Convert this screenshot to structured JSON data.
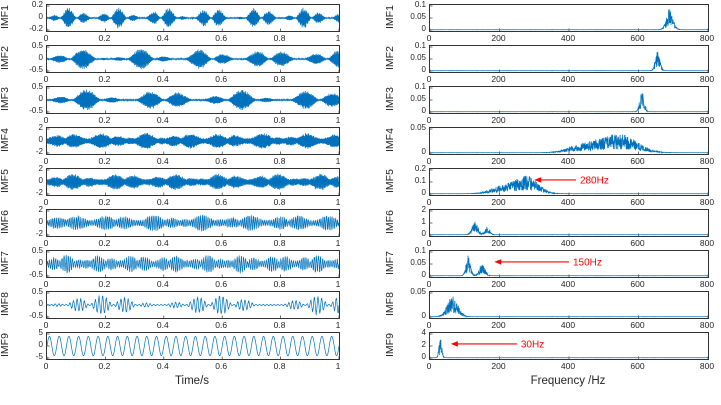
{
  "figure": {
    "background": "#ffffff",
    "line_color": "#0072BD",
    "axis_color": "#333333",
    "annotation_color": "#FF0000"
  },
  "chart_data": {
    "type": "line",
    "description": "EMD decomposition: nine IMF time-domain waveforms (left column) and their frequency spectra (right column)",
    "left_column": {
      "xlabel": "Time/s",
      "xlim": [
        0,
        1
      ],
      "xticks": [
        0,
        0.2,
        0.4,
        0.6,
        0.8,
        1
      ],
      "panels": [
        {
          "label": "IMF1",
          "ylim": [
            -0.2,
            0.2
          ],
          "yticks": [
            0.2,
            0,
            -0.2
          ],
          "signal": {
            "carrier_hz": 680,
            "amp": 0.19,
            "env_type": "bursts",
            "env_hz": [
              3.1,
              8.7
            ]
          }
        },
        {
          "label": "IMF2",
          "ylim": [
            -0.5,
            0.5
          ],
          "yticks": [
            0.5,
            0,
            -0.5
          ],
          "signal": {
            "carrier_hz": 650,
            "amp": 0.48,
            "env_type": "bursts",
            "env_hz": [
              2.3,
              5.1
            ]
          }
        },
        {
          "label": "IMF3",
          "ylim": [
            -0.5,
            0.5
          ],
          "yticks": [
            0.5,
            0,
            -0.5
          ],
          "signal": {
            "carrier_hz": 600,
            "amp": 0.48,
            "env_type": "bursts",
            "env_hz": [
              1.9,
              4.7
            ]
          }
        },
        {
          "label": "IMF4",
          "ylim": [
            -2,
            2
          ],
          "yticks": [
            2,
            0,
            -2
          ],
          "signal": {
            "carrier_hz": 520,
            "amp": 1.5,
            "env_type": "noisy",
            "env_hz": [
              3.7,
              6.3
            ]
          }
        },
        {
          "label": "IMF5",
          "ylim": [
            -2,
            2
          ],
          "yticks": [
            2,
            0,
            -2
          ],
          "signal": {
            "carrier_hz": 300,
            "amp": 1.5,
            "env_type": "noisy",
            "env_hz": [
              2.9,
              7.1
            ]
          }
        },
        {
          "label": "IMF6",
          "ylim": [
            -2,
            2
          ],
          "yticks": [
            2,
            0,
            -2
          ],
          "signal": {
            "carrier_hz": 160,
            "amp": 1.5,
            "env_type": "noisy",
            "env_hz": [
              3.3,
              5.9
            ]
          }
        },
        {
          "label": "IMF7",
          "ylim": [
            -0.5,
            0.5
          ],
          "yticks": [
            0.5,
            0,
            -0.5
          ],
          "signal": {
            "carrier_hz": 140,
            "amp": 0.42,
            "env_type": "noisy",
            "env_hz": [
              4.1,
              9.3
            ]
          }
        },
        {
          "label": "IMF8",
          "ylim": [
            -0.5,
            0.5
          ],
          "yticks": [
            0.5,
            0,
            -0.5
          ],
          "signal": {
            "carrier_hz": 80,
            "amp": 0.45,
            "env_type": "bursts",
            "env_hz": [
              1.3,
              6.1
            ]
          }
        },
        {
          "label": "IMF9",
          "ylim": [
            -5,
            5
          ],
          "yticks": [
            5,
            0,
            -5
          ],
          "signal": {
            "carrier_hz": 30,
            "amp": 4.2,
            "env_type": "const",
            "env_hz": []
          }
        }
      ]
    },
    "right_column": {
      "xlabel": "Frequency /Hz",
      "xlim": [
        0,
        800
      ],
      "xticks": [
        0,
        200,
        400,
        600,
        800
      ],
      "panels": [
        {
          "label": "IMF1",
          "ylim": [
            0,
            0.1
          ],
          "yticks": [
            0.1,
            0.05,
            0
          ],
          "peaks": [
            {
              "f": 690,
              "a": 0.095,
              "w": 14
            }
          ]
        },
        {
          "label": "IMF2",
          "ylim": [
            0,
            0.1
          ],
          "yticks": [
            0.1,
            0.05,
            0
          ],
          "peaks": [
            {
              "f": 655,
              "a": 0.085,
              "w": 10
            }
          ]
        },
        {
          "label": "IMF3",
          "ylim": [
            0,
            0.1
          ],
          "yticks": [
            0.1,
            0.05,
            0
          ],
          "peaks": [
            {
              "f": 610,
              "a": 0.09,
              "w": 9
            }
          ]
        },
        {
          "label": "IMF4",
          "ylim": [
            0,
            0.05
          ],
          "yticks": [
            0.05,
            0
          ],
          "peaks": [
            {
              "f": 545,
              "a": 0.042,
              "w": 70
            },
            {
              "f": 440,
              "a": 0.018,
              "w": 60
            }
          ]
        },
        {
          "label": "IMF5",
          "ylim": [
            0,
            0.2
          ],
          "yticks": [
            0.2,
            0.1,
            0
          ],
          "peaks": [
            {
              "f": 280,
              "a": 0.15,
              "w": 45
            },
            {
              "f": 210,
              "a": 0.07,
              "w": 50
            }
          ],
          "annotation": {
            "text": "280Hz",
            "tip_hz": 300,
            "tail_hz": 420
          }
        },
        {
          "label": "IMF6",
          "ylim": [
            0,
            2
          ],
          "yticks": [
            2,
            1,
            0
          ],
          "peaks": [
            {
              "f": 130,
              "a": 1.25,
              "w": 12
            },
            {
              "f": 165,
              "a": 0.7,
              "w": 10
            }
          ]
        },
        {
          "label": "IMF7",
          "ylim": [
            0,
            0.1
          ],
          "yticks": [
            0.1,
            0.05,
            0
          ],
          "peaks": [
            {
              "f": 110,
              "a": 0.09,
              "w": 9
            },
            {
              "f": 150,
              "a": 0.055,
              "w": 12
            }
          ],
          "annotation": {
            "text": "150Hz",
            "tip_hz": 185,
            "tail_hz": 400
          }
        },
        {
          "label": "IMF8",
          "ylim": [
            0,
            0.05
          ],
          "yticks": [
            0.05,
            0
          ],
          "peaks": [
            {
              "f": 65,
              "a": 0.045,
              "w": 22
            }
          ]
        },
        {
          "label": "IMF9",
          "ylim": [
            0,
            4
          ],
          "yticks": [
            4,
            2,
            0
          ],
          "peaks": [
            {
              "f": 30,
              "a": 3.6,
              "w": 6
            }
          ],
          "annotation": {
            "text": "30Hz",
            "tip_hz": 60,
            "tail_hz": 250
          }
        }
      ]
    }
  }
}
